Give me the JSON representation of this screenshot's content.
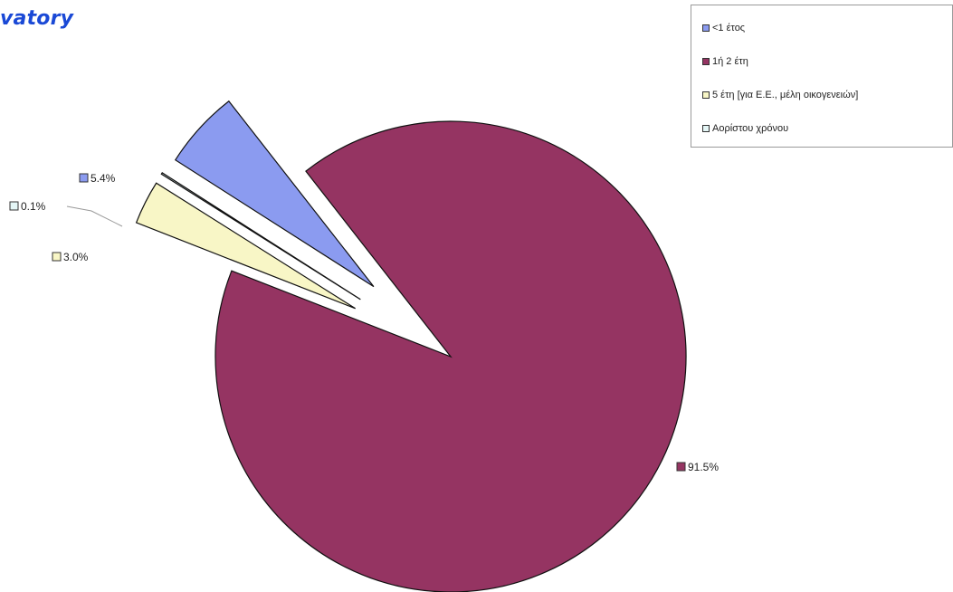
{
  "logo": {
    "text": "vatory"
  },
  "chart_data": {
    "type": "pie",
    "title": "",
    "slices": [
      {
        "label": "<1 έτος",
        "value": 5.4,
        "display": "5.4%",
        "color": "#8b9bf0"
      },
      {
        "label": "1ή 2 έτη",
        "value": 91.5,
        "display": "91.5%",
        "color": "#953462"
      },
      {
        "label": "5 έτη [για Ε.Ε., μέλη οικογενειών]",
        "value": 3.0,
        "display": "3.0%",
        "color": "#f8f6c6"
      },
      {
        "label": "Αορίστου χρόνου",
        "value": 0.1,
        "display": "0.1%",
        "color": "#e4f6f6"
      }
    ],
    "legend": {
      "position": "top-right"
    }
  }
}
